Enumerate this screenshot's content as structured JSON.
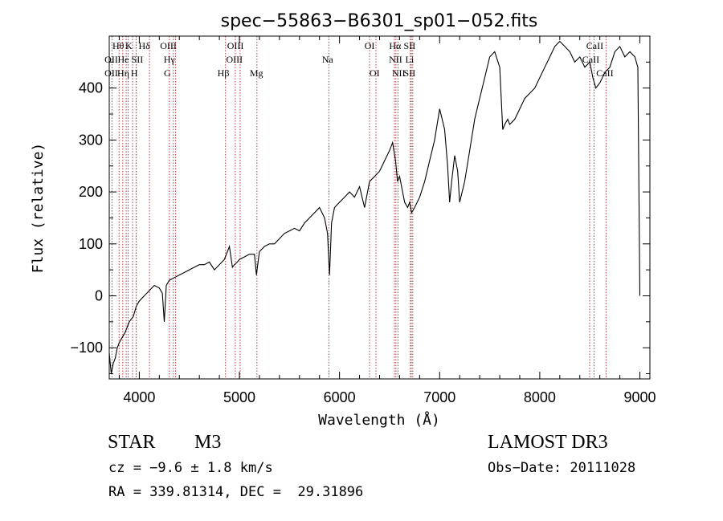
{
  "chart_data": {
    "type": "line",
    "title": "spec−55863−B6301_sp01−052.fits",
    "xlabel": "Wavelength (Å)",
    "ylabel": "Flux (relative)",
    "xlim": [
      3700,
      9100
    ],
    "ylim": [
      -160,
      500
    ],
    "xticks": [
      4000,
      5000,
      6000,
      7000,
      8000,
      9000
    ],
    "yticks": [
      -100,
      0,
      100,
      200,
      300,
      400
    ],
    "ytick_labels": [
      "−100",
      "0",
      "100",
      "200",
      "300",
      "400"
    ],
    "series": [
      {
        "name": "flux",
        "x": [
          3700,
          3720,
          3740,
          3760,
          3780,
          3800,
          3830,
          3860,
          3900,
          3940,
          3970,
          4000,
          4050,
          4100,
          4150,
          4200,
          4230,
          4250,
          4270,
          4300,
          4350,
          4400,
          4450,
          4500,
          4550,
          4600,
          4650,
          4700,
          4750,
          4800,
          4850,
          4870,
          4900,
          4930,
          4950,
          4980,
          5000,
          5050,
          5100,
          5150,
          5170,
          5200,
          5250,
          5300,
          5350,
          5400,
          5450,
          5500,
          5550,
          5600,
          5650,
          5700,
          5750,
          5800,
          5850,
          5880,
          5900,
          5920,
          5950,
          6000,
          6050,
          6100,
          6150,
          6200,
          6250,
          6300,
          6350,
          6400,
          6450,
          6500,
          6530,
          6560,
          6580,
          6600,
          6630,
          6650,
          6680,
          6700,
          6720,
          6750,
          6800,
          6850,
          6900,
          6950,
          7000,
          7050,
          7080,
          7100,
          7120,
          7150,
          7180,
          7200,
          7250,
          7300,
          7350,
          7400,
          7450,
          7500,
          7550,
          7600,
          7630,
          7650,
          7680,
          7700,
          7750,
          7800,
          7850,
          7900,
          7950,
          8000,
          8050,
          8100,
          8150,
          8200,
          8250,
          8300,
          8350,
          8400,
          8450,
          8500,
          8530,
          8560,
          8600,
          8650,
          8700,
          8750,
          8800,
          8850,
          8900,
          8950,
          8980,
          9000
        ],
        "y": [
          -110,
          -150,
          -130,
          -120,
          -100,
          -90,
          -80,
          -70,
          -50,
          -40,
          -20,
          -10,
          0,
          10,
          20,
          15,
          5,
          -50,
          20,
          30,
          35,
          40,
          45,
          50,
          55,
          60,
          60,
          65,
          50,
          60,
          70,
          80,
          95,
          55,
          60,
          65,
          70,
          75,
          80,
          80,
          40,
          85,
          95,
          100,
          100,
          110,
          120,
          125,
          130,
          125,
          140,
          150,
          160,
          170,
          150,
          120,
          40,
          140,
          170,
          180,
          190,
          200,
          190,
          210,
          170,
          220,
          230,
          240,
          260,
          280,
          295,
          260,
          220,
          230,
          200,
          180,
          170,
          180,
          160,
          170,
          190,
          220,
          260,
          300,
          360,
          320,
          250,
          180,
          220,
          270,
          240,
          180,
          220,
          280,
          340,
          380,
          420,
          460,
          470,
          440,
          320,
          330,
          340,
          330,
          340,
          360,
          380,
          390,
          400,
          420,
          440,
          460,
          480,
          490,
          480,
          470,
          450,
          460,
          440,
          450,
          420,
          400,
          410,
          430,
          440,
          470,
          480,
          460,
          470,
          460,
          440,
          0
        ]
      }
    ],
    "lines_x": [
      3727,
      3798,
      3835,
      3869,
      3889,
      3933,
      3968,
      3970,
      4102,
      4300,
      4340,
      4363,
      4861,
      4959,
      5007,
      5175,
      5893,
      6300,
      6364,
      6548,
      6563,
      6584,
      6707,
      6717,
      6731,
      8498,
      8542,
      8662
    ],
    "line_labels": [
      {
        "text": "Hθ",
        "x": 3790,
        "row": 1
      },
      {
        "text": "K",
        "x": 3895,
        "row": 1
      },
      {
        "text": "Hδ",
        "x": 4050,
        "row": 1
      },
      {
        "text": "OIII",
        "x": 4290,
        "row": 1
      },
      {
        "text": "OIII",
        "x": 4960,
        "row": 1
      },
      {
        "text": "OI",
        "x": 6300,
        "row": 1
      },
      {
        "text": "Hα",
        "x": 6555,
        "row": 1
      },
      {
        "text": "SII",
        "x": 6700,
        "row": 1
      },
      {
        "text": "CaII",
        "x": 8550,
        "row": 1
      },
      {
        "text": "OII",
        "x": 3720,
        "row": 2
      },
      {
        "text": "He",
        "x": 3840,
        "row": 2
      },
      {
        "text": "SII",
        "x": 3980,
        "row": 2
      },
      {
        "text": "Hγ",
        "x": 4300,
        "row": 2
      },
      {
        "text": "OIII",
        "x": 4950,
        "row": 2
      },
      {
        "text": "Na",
        "x": 5880,
        "row": 2
      },
      {
        "text": "NII",
        "x": 6560,
        "row": 2
      },
      {
        "text": "Li",
        "x": 6700,
        "row": 2
      },
      {
        "text": "CaII",
        "x": 8510,
        "row": 2
      },
      {
        "text": "OII",
        "x": 3720,
        "row": 3
      },
      {
        "text": "Hη",
        "x": 3840,
        "row": 3
      },
      {
        "text": "H",
        "x": 3950,
        "row": 3
      },
      {
        "text": "G",
        "x": 4280,
        "row": 3
      },
      {
        "text": "Hβ",
        "x": 4840,
        "row": 3
      },
      {
        "text": "Mg",
        "x": 5170,
        "row": 3
      },
      {
        "text": "OI",
        "x": 6350,
        "row": 3
      },
      {
        "text": "NII",
        "x": 6590,
        "row": 3
      },
      {
        "text": "SII",
        "x": 6700,
        "row": 3
      },
      {
        "text": "CaII",
        "x": 8650,
        "row": 3
      }
    ]
  },
  "info": {
    "class_label": "STAR",
    "subclass": "M3",
    "survey": "LAMOST DR3",
    "cz": "cz = −9.6 ± 1.8 km/s",
    "obs_date": "Obs−Date: 20111028",
    "radec": "RA = 339.81314, DEC =  29.31896"
  },
  "colors": {
    "line_marker": "#b33a3a",
    "axis": "#000000"
  }
}
